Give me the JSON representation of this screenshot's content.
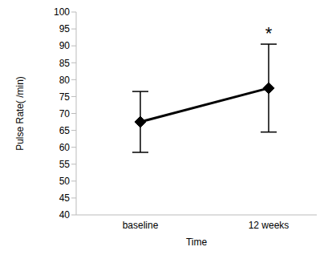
{
  "chart_data": {
    "type": "line",
    "categories": [
      "baseline",
      "12 weeks"
    ],
    "values": [
      67.5,
      77.5
    ],
    "error": [
      9,
      13
    ],
    "color": "#000000",
    "marker": "diamond",
    "ylim": [
      40,
      100
    ],
    "yticks": [
      40,
      45,
      50,
      55,
      60,
      65,
      70,
      75,
      80,
      85,
      90,
      95,
      100
    ],
    "xlabel": "Time",
    "ylabel": "Pulse Rate( /min)",
    "annotations": [
      {
        "text": "*",
        "category": "12 weeks"
      }
    ]
  }
}
